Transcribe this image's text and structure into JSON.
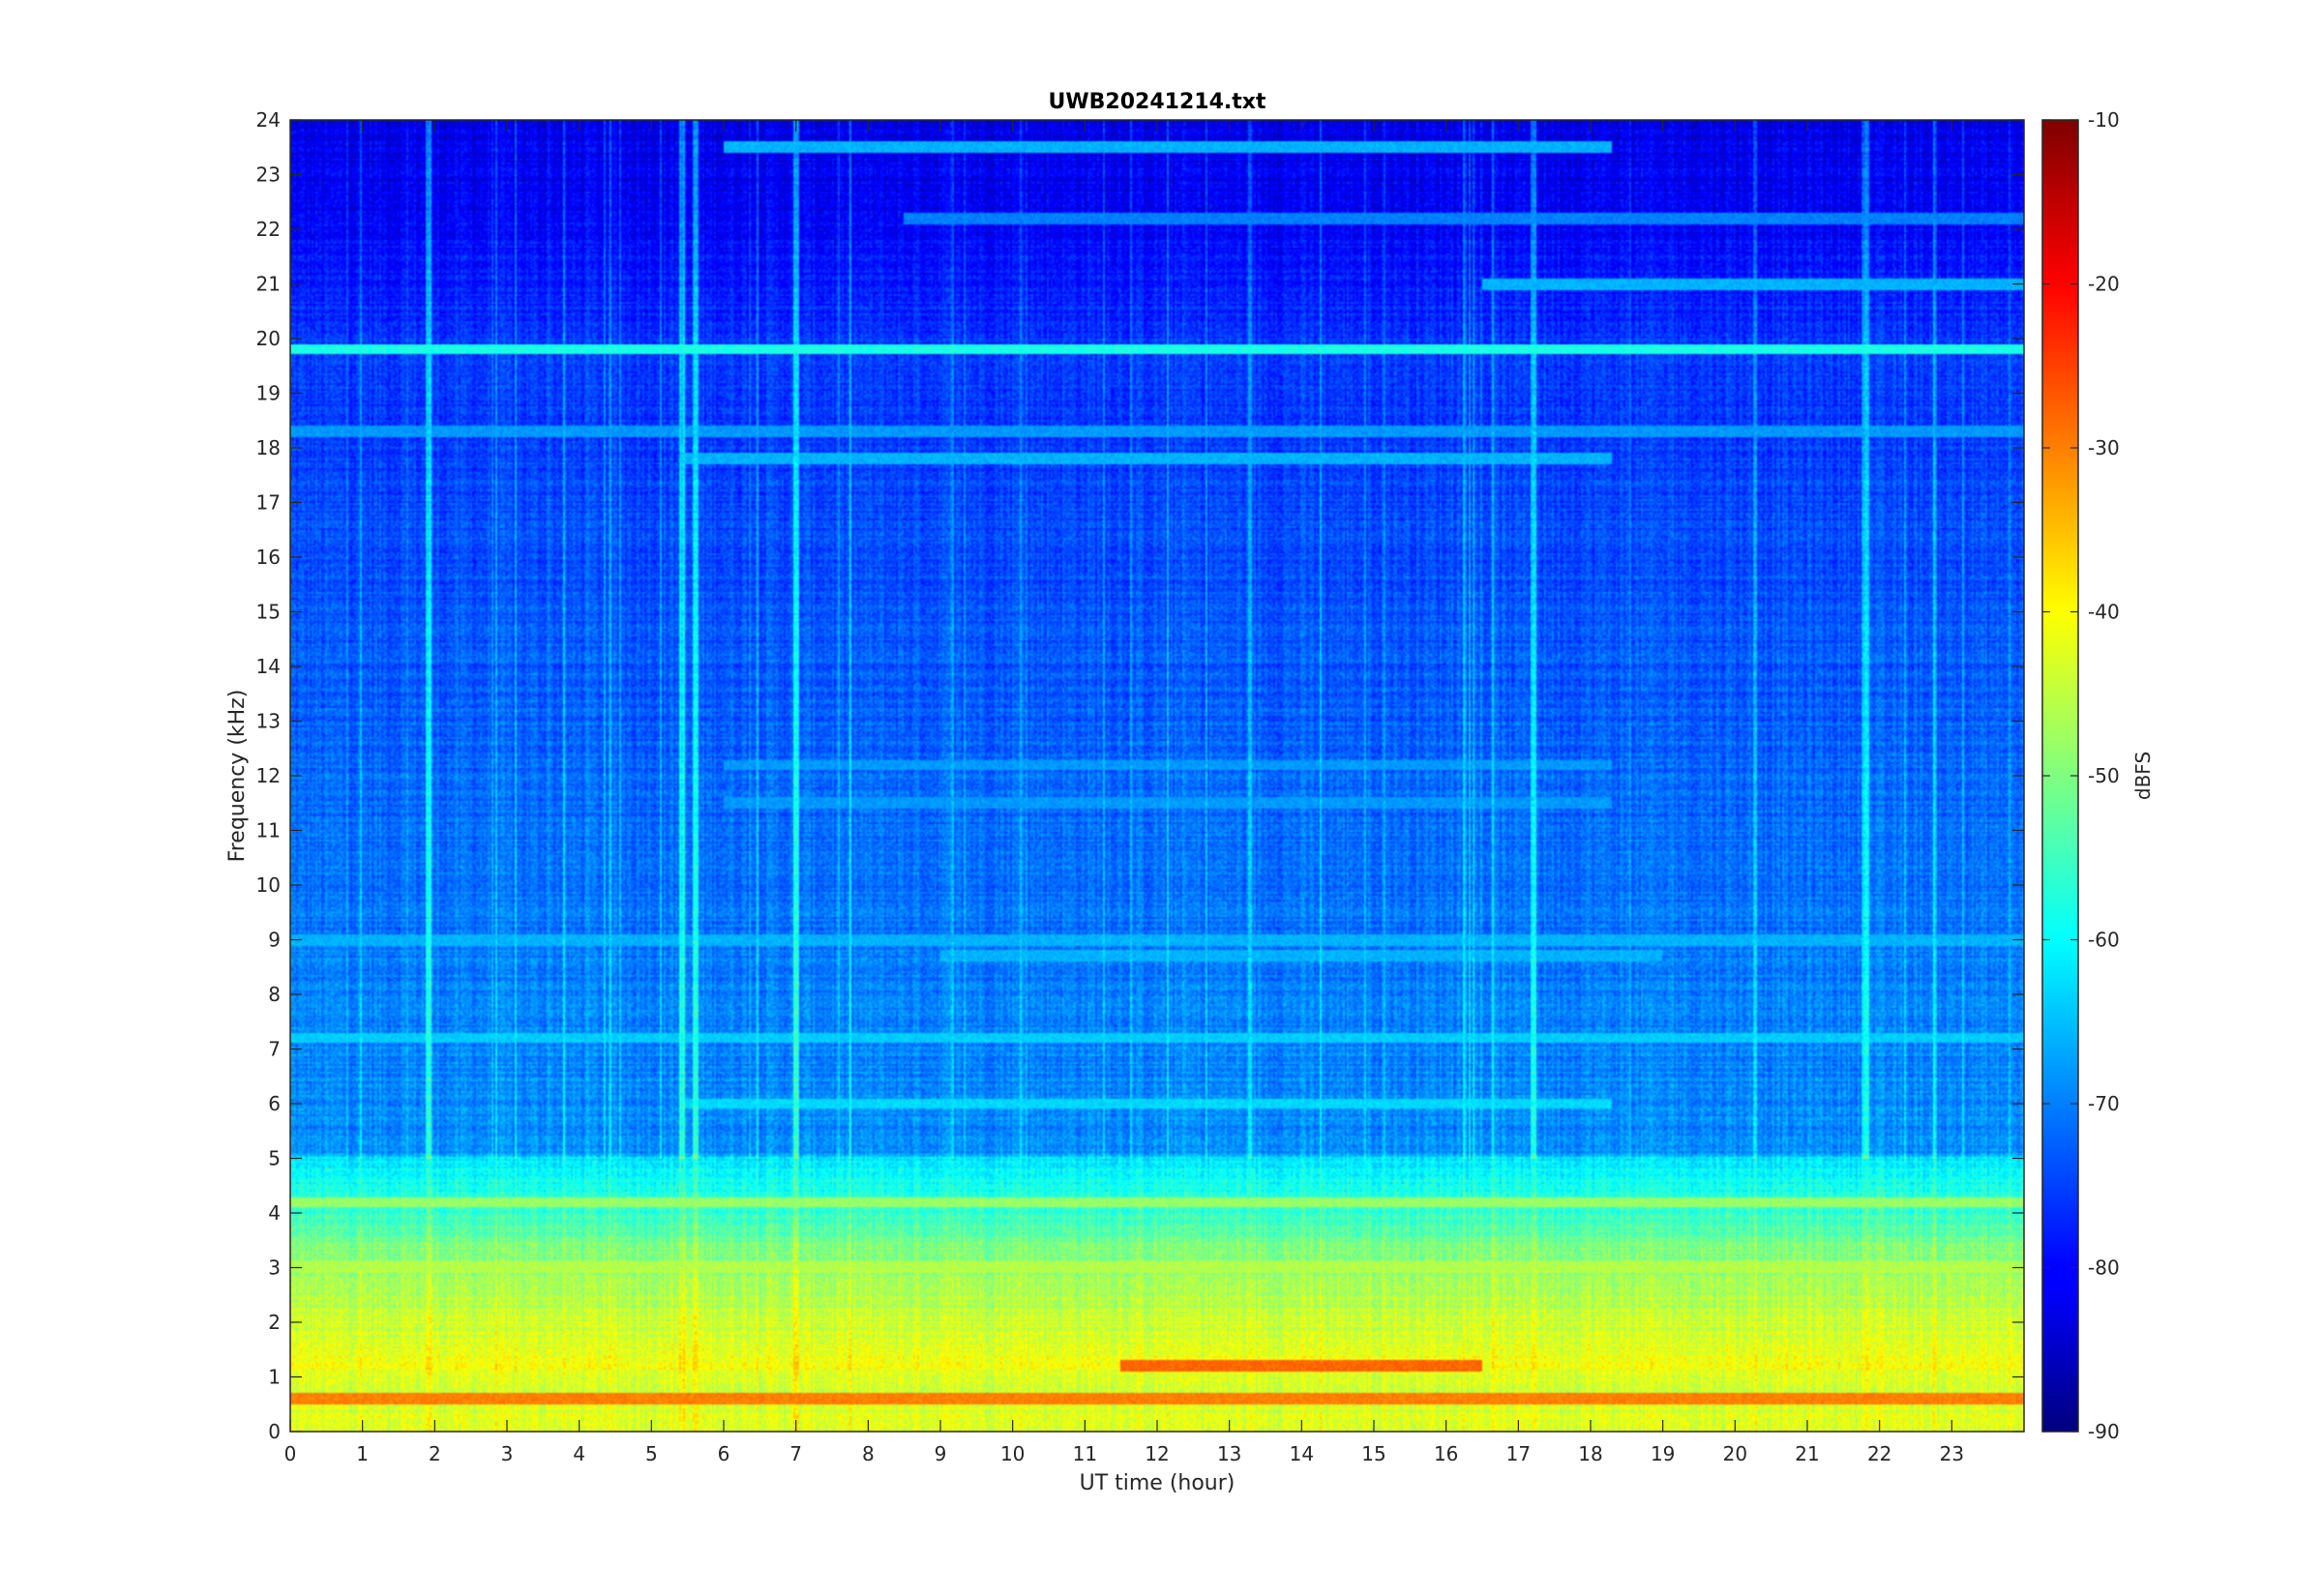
{
  "chart_data": {
    "type": "heatmap",
    "title": "UWB20241214.txt",
    "xlabel": "UT time (hour)",
    "ylabel": "Frequency (kHz)",
    "xlim": [
      0,
      24
    ],
    "ylim": [
      0,
      24
    ],
    "x_ticks": [
      "0",
      "1",
      "2",
      "3",
      "4",
      "5",
      "6",
      "7",
      "8",
      "9",
      "10",
      "11",
      "12",
      "13",
      "14",
      "15",
      "16",
      "17",
      "18",
      "19",
      "20",
      "21",
      "22",
      "23"
    ],
    "y_ticks": [
      "0",
      "1",
      "2",
      "3",
      "4",
      "5",
      "6",
      "7",
      "8",
      "9",
      "10",
      "11",
      "12",
      "13",
      "14",
      "15",
      "16",
      "17",
      "18",
      "19",
      "20",
      "21",
      "22",
      "23",
      "24"
    ],
    "grid": false,
    "colormap": "jet",
    "colorbar": {
      "label": "dBFS",
      "range": [
        -90,
        -10
      ],
      "ticks": [
        "-10",
        "-20",
        "-30",
        "-40",
        "-50",
        "-60",
        "-70",
        "-80",
        "-90"
      ],
      "tick_values": [
        -10,
        -20,
        -30,
        -40,
        -50,
        -60,
        -70,
        -80,
        -90
      ]
    },
    "base_spectrum": [
      {
        "freq_khz": 0.0,
        "dbfs": -42
      },
      {
        "freq_khz": 0.6,
        "dbfs": -44
      },
      {
        "freq_khz": 1.2,
        "dbfs": -41
      },
      {
        "freq_khz": 2.0,
        "dbfs": -44
      },
      {
        "freq_khz": 2.8,
        "dbfs": -48
      },
      {
        "freq_khz": 3.3,
        "dbfs": -50
      },
      {
        "freq_khz": 4.0,
        "dbfs": -56
      },
      {
        "freq_khz": 4.6,
        "dbfs": -59
      },
      {
        "freq_khz": 5.0,
        "dbfs": -62
      },
      {
        "freq_khz": 5.1,
        "dbfs": -69
      },
      {
        "freq_khz": 8.0,
        "dbfs": -70
      },
      {
        "freq_khz": 12.0,
        "dbfs": -72
      },
      {
        "freq_khz": 16.0,
        "dbfs": -74
      },
      {
        "freq_khz": 20.0,
        "dbfs": -76
      },
      {
        "freq_khz": 22.0,
        "dbfs": -80
      },
      {
        "freq_khz": 24.0,
        "dbfs": -82
      }
    ],
    "tone_lines": [
      {
        "freq_khz": 19.8,
        "dbfs": -58,
        "start_hour": 0,
        "end_hour": 24
      },
      {
        "freq_khz": 18.3,
        "dbfs": -68,
        "start_hour": 0,
        "end_hour": 24
      },
      {
        "freq_khz": 21.0,
        "dbfs": -66,
        "start_hour": 16.5,
        "end_hour": 24
      },
      {
        "freq_khz": 22.2,
        "dbfs": -70,
        "start_hour": 8.5,
        "end_hour": 24
      },
      {
        "freq_khz": 23.5,
        "dbfs": -66,
        "start_hour": 6,
        "end_hour": 18.3
      },
      {
        "freq_khz": 17.8,
        "dbfs": -66,
        "start_hour": 5.4,
        "end_hour": 18.3
      },
      {
        "freq_khz": 12.2,
        "dbfs": -68,
        "start_hour": 6,
        "end_hour": 18.3
      },
      {
        "freq_khz": 11.5,
        "dbfs": -68,
        "start_hour": 6,
        "end_hour": 18.3
      },
      {
        "freq_khz": 9.0,
        "dbfs": -66,
        "start_hour": 0,
        "end_hour": 24
      },
      {
        "freq_khz": 8.7,
        "dbfs": -66,
        "start_hour": 9,
        "end_hour": 19
      },
      {
        "freq_khz": 7.2,
        "dbfs": -64,
        "start_hour": 0,
        "end_hour": 24
      },
      {
        "freq_khz": 6.0,
        "dbfs": -63,
        "start_hour": 5.4,
        "end_hour": 18.3
      },
      {
        "freq_khz": 4.2,
        "dbfs": -48,
        "start_hour": 0,
        "end_hour": 24
      },
      {
        "freq_khz": 3.0,
        "dbfs": -46,
        "start_hour": 0,
        "end_hour": 24
      },
      {
        "freq_khz": 1.2,
        "dbfs": -28,
        "start_hour": 11.5,
        "end_hour": 16.5
      },
      {
        "freq_khz": 0.6,
        "dbfs": -30,
        "start_hour": 0,
        "end_hour": 24
      }
    ],
    "impulse_columns": [
      {
        "hour": 1.9,
        "dbfs": -62
      },
      {
        "hour": 5.4,
        "dbfs": -62
      },
      {
        "hour": 5.6,
        "dbfs": -64
      },
      {
        "hour": 7.0,
        "dbfs": -66
      },
      {
        "hour": 17.2,
        "dbfs": -66
      },
      {
        "hour": 21.8,
        "dbfs": -66
      }
    ]
  }
}
